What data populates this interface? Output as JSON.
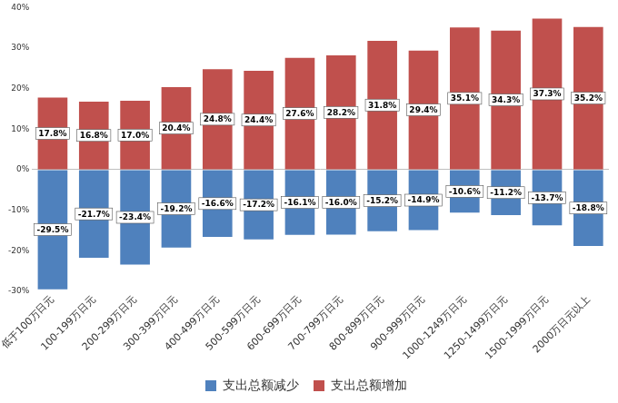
{
  "chart_data": {
    "type": "bar",
    "stacked": true,
    "data_labels": true,
    "grid": false,
    "legend": "bottom",
    "categories": [
      "低于100万日元",
      "100-199万日元",
      "200-299万日元",
      "300-399万日元",
      "400-499万日元",
      "500-599万日元",
      "600-699万日元",
      "700-799万日元",
      "800-899万日元",
      "900-999万日元",
      "1000-1249万日元",
      "1250-1499万日元",
      "1500-1999万日元",
      "2000万日元以上"
    ],
    "series": [
      {
        "name": "支出总额减少",
        "color": "#4f81bd",
        "values": [
          -29.5,
          -21.7,
          -23.4,
          -19.2,
          -16.6,
          -17.2,
          -16.1,
          -16.0,
          -15.2,
          -14.9,
          -10.6,
          -11.2,
          -13.7,
          -18.8
        ],
        "value_labels": [
          "-29.5%",
          "-21.7%",
          "-23.4%",
          "-19.2%",
          "-16.6%",
          "-17.2%",
          "-16.1%",
          "-16.0%",
          "-15.2%",
          "-14.9%",
          "-10.6%",
          "-11.2%",
          "-13.7%",
          "-18.8%"
        ]
      },
      {
        "name": "支出总额增加",
        "color": "#c0504d",
        "values": [
          17.8,
          16.8,
          17.0,
          20.4,
          24.8,
          24.4,
          27.6,
          28.2,
          31.8,
          29.4,
          35.1,
          34.3,
          37.3,
          35.2
        ],
        "value_labels": [
          "17.8%",
          "16.8%",
          "17.0%",
          "20.4%",
          "24.8%",
          "24.4%",
          "27.6%",
          "28.2%",
          "31.8%",
          "29.4%",
          "35.1%",
          "34.3%",
          "37.3%",
          "35.2%"
        ]
      }
    ],
    "ylim": [
      -30,
      40
    ],
    "yticks": [
      {
        "value": -30,
        "label": "-30%"
      },
      {
        "value": -20,
        "label": "-20%"
      },
      {
        "value": -10,
        "label": "-10%"
      },
      {
        "value": 0,
        "label": "0%"
      },
      {
        "value": 10,
        "label": "10%"
      },
      {
        "value": 20,
        "label": "20%"
      },
      {
        "value": 30,
        "label": "30%"
      },
      {
        "value": 40,
        "label": "40%"
      }
    ]
  }
}
